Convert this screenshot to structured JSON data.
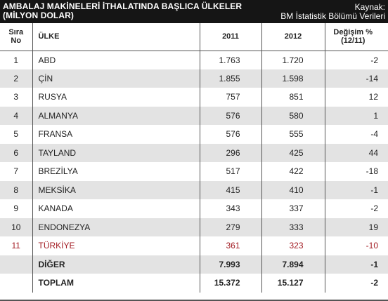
{
  "header": {
    "title_line1": "AMBALAJ MAKİNELERİ İTHALATINDA BAŞLICA ÜLKELER",
    "title_line2": "(MİLYON DOLAR)",
    "source_label": "Kaynak:",
    "source_value": "BM İstatistik Bölümü Verileri"
  },
  "columns": {
    "rank_line1": "Sıra",
    "rank_line2": "No",
    "country": "ÜLKE",
    "y2011": "2011",
    "y2012": "2012",
    "change_line1": "Değişim %",
    "change_line2": "(12/11)"
  },
  "rows": [
    {
      "rank": "1",
      "country": "ABD",
      "v2011": "1.763",
      "v2012": "1.720",
      "change": "-2"
    },
    {
      "rank": "2",
      "country": "ÇİN",
      "v2011": "1.855",
      "v2012": "1.598",
      "change": "-14"
    },
    {
      "rank": "3",
      "country": "RUSYA",
      "v2011": "757",
      "v2012": "851",
      "change": "12"
    },
    {
      "rank": "4",
      "country": "ALMANYA",
      "v2011": "576",
      "v2012": "580",
      "change": "1"
    },
    {
      "rank": "5",
      "country": "FRANSA",
      "v2011": "576",
      "v2012": "555",
      "change": "-4"
    },
    {
      "rank": "6",
      "country": "TAYLAND",
      "v2011": "296",
      "v2012": "425",
      "change": "44"
    },
    {
      "rank": "7",
      "country": "BREZİLYA",
      "v2011": "517",
      "v2012": "422",
      "change": "-18"
    },
    {
      "rank": "8",
      "country": "MEKSİKA",
      "v2011": "415",
      "v2012": "410",
      "change": "-1"
    },
    {
      "rank": "9",
      "country": "KANADA",
      "v2011": "343",
      "v2012": "337",
      "change": "-2"
    },
    {
      "rank": "10",
      "country": "ENDONEZYA",
      "v2011": "279",
      "v2012": "333",
      "change": "19"
    },
    {
      "rank": "11",
      "country": "TÜRKİYE",
      "v2011": "361",
      "v2012": "323",
      "change": "-10"
    }
  ],
  "other": {
    "rank": "",
    "country": "DİĞER",
    "v2011": "7.993",
    "v2012": "7.894",
    "change": "-1"
  },
  "total": {
    "rank": "",
    "country": "TOPLAM",
    "v2011": "15.372",
    "v2012": "15.127",
    "change": "-2"
  },
  "colors": {
    "header_bg": "#151515",
    "shade": "#e3e3e3",
    "highlight": "#a31d24"
  }
}
